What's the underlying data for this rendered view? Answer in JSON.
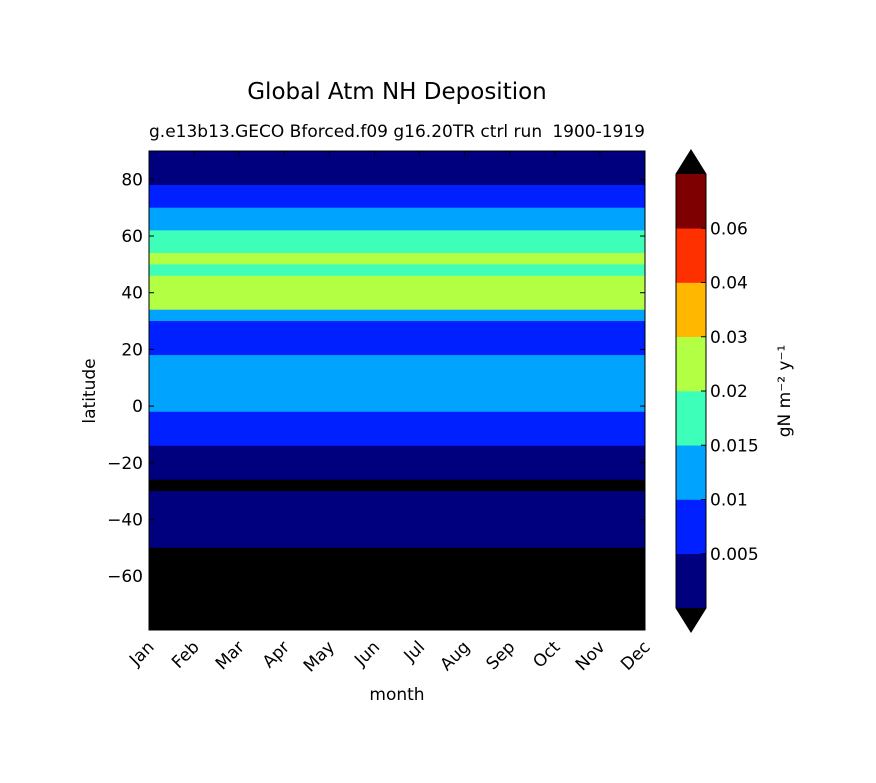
{
  "chart_data": {
    "type": "heatmap",
    "title": "Global Atm NH Deposition",
    "subtitle_left": "g.e13b13.GECO Bforced.f09 g16.20TR ctrl run",
    "subtitle_right": "1900-1919",
    "xlabel": "month",
    "ylabel": "latitude",
    "x_ticks": [
      "Jan",
      "Feb",
      "Mar",
      "Apr",
      "May",
      "Jun",
      "Jul",
      "Aug",
      "Sep",
      "Oct",
      "Nov",
      "Dec"
    ],
    "y_ticks": [
      80,
      60,
      40,
      20,
      0,
      -20,
      -40,
      -60
    ],
    "ylim": [
      -79,
      90
    ],
    "colorbar": {
      "label": "gN m⁻² y⁻¹",
      "tick_labels": [
        "0.005",
        "0.01",
        "0.015",
        "0.02",
        "0.03",
        "0.04",
        "0.06"
      ],
      "levels": [
        0.001,
        0.005,
        0.01,
        0.015,
        0.02,
        0.03,
        0.04,
        0.06,
        0.07
      ],
      "colors": [
        "#00007f",
        "#0020ff",
        "#00a4ff",
        "#3dffb9",
        "#b3ff43",
        "#ffb700",
        "#ff3000",
        "#7f0000"
      ],
      "under_color": "#000000",
      "over_color": "#000000",
      "extend": "both"
    },
    "latitude_profile": [
      {
        "lat": 90,
        "value": 0.003
      },
      {
        "lat": 86,
        "value": 0.003
      },
      {
        "lat": 82,
        "value": 0.004
      },
      {
        "lat": 78,
        "value": 0.007
      },
      {
        "lat": 74,
        "value": 0.008
      },
      {
        "lat": 70,
        "value": 0.011
      },
      {
        "lat": 66,
        "value": 0.013
      },
      {
        "lat": 62,
        "value": 0.016
      },
      {
        "lat": 58,
        "value": 0.019
      },
      {
        "lat": 54,
        "value": 0.021
      },
      {
        "lat": 50,
        "value": 0.019
      },
      {
        "lat": 46,
        "value": 0.02
      },
      {
        "lat": 42,
        "value": 0.024
      },
      {
        "lat": 38,
        "value": 0.021
      },
      {
        "lat": 34,
        "value": 0.012
      },
      {
        "lat": 30,
        "value": 0.008
      },
      {
        "lat": 26,
        "value": 0.007
      },
      {
        "lat": 22,
        "value": 0.008
      },
      {
        "lat": 18,
        "value": 0.012
      },
      {
        "lat": 14,
        "value": 0.012
      },
      {
        "lat": 10,
        "value": 0.012
      },
      {
        "lat": 6,
        "value": 0.014
      },
      {
        "lat": 2,
        "value": 0.012
      },
      {
        "lat": -2,
        "value": 0.009
      },
      {
        "lat": -6,
        "value": 0.007
      },
      {
        "lat": -10,
        "value": 0.006
      },
      {
        "lat": -14,
        "value": 0.004
      },
      {
        "lat": -18,
        "value": 0.003
      },
      {
        "lat": -22,
        "value": 0.001
      },
      {
        "lat": -26,
        "value": 0.0005
      },
      {
        "lat": -30,
        "value": 0.001
      },
      {
        "lat": -34,
        "value": 0.003
      },
      {
        "lat": -38,
        "value": 0.004
      },
      {
        "lat": -42,
        "value": 0.004
      },
      {
        "lat": -46,
        "value": 0.003
      },
      {
        "lat": -50,
        "value": 0.0005
      },
      {
        "lat": -60,
        "value": 0.0002
      },
      {
        "lat": -70,
        "value": 0.0002
      },
      {
        "lat": -79,
        "value": 0.0002
      }
    ]
  }
}
